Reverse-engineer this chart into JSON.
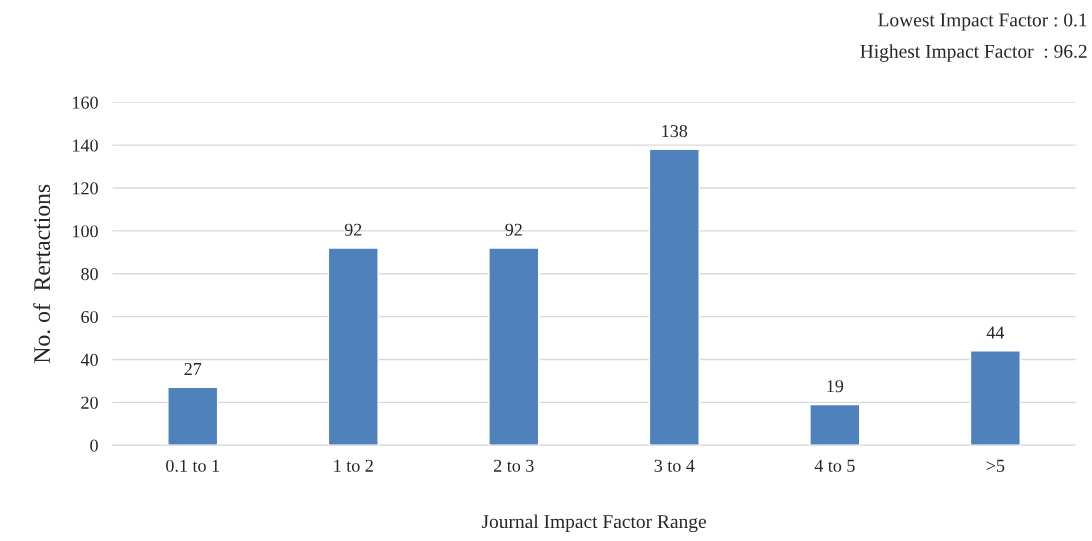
{
  "chart_data": {
    "type": "bar",
    "xlabel": "Journal Impact Factor Range",
    "ylabel": "No. of  Rertactions",
    "categories": [
      "0.1 to 1",
      "1 to 2",
      "2 to 3",
      "3 to 4",
      "4 to 5",
      ">5"
    ],
    "values": [
      27,
      92,
      92,
      138,
      19,
      44
    ],
    "color": "#4f81bd",
    "ylim": [
      0,
      160
    ],
    "yticks": [
      0,
      20,
      40,
      60,
      80,
      100,
      120,
      140,
      160
    ],
    "grid": "y",
    "data_labels": true,
    "annotations": [
      "Lowest Impact Factor : 0.1",
      "Highest Impact Factor  : 96.2"
    ]
  }
}
